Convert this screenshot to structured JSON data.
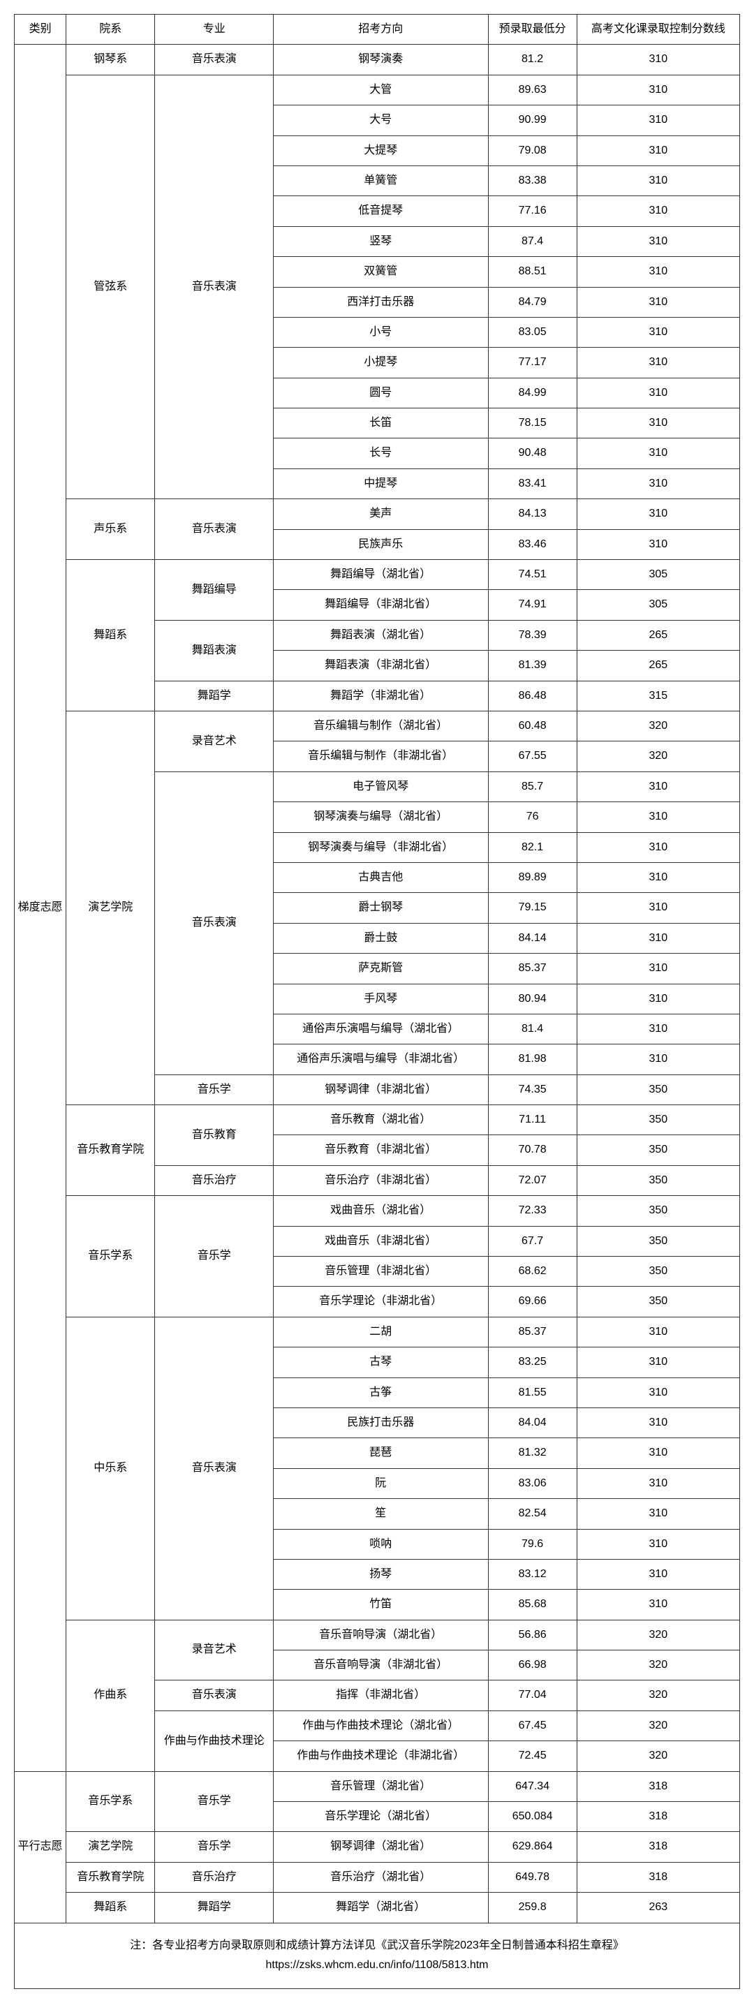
{
  "headers": {
    "category": "类别",
    "department": "院系",
    "major": "专业",
    "direction": "招考方向",
    "min_score": "预录取最低分",
    "culture_line": "高考文化课录取控制分数线"
  },
  "rows": [
    {
      "cat": "梯度志愿",
      "catSpan": 57,
      "dept": "钢琴系",
      "deptSpan": 1,
      "major": "音乐表演",
      "majorSpan": 1,
      "dir": "钢琴演奏",
      "min": "81.2",
      "line": "310"
    },
    {
      "dept": "管弦系",
      "deptSpan": 14,
      "major": "音乐表演",
      "majorSpan": 14,
      "dir": "大管",
      "min": "89.63",
      "line": "310"
    },
    {
      "dir": "大号",
      "min": "90.99",
      "line": "310"
    },
    {
      "dir": "大提琴",
      "min": "79.08",
      "line": "310"
    },
    {
      "dir": "单簧管",
      "min": "83.38",
      "line": "310"
    },
    {
      "dir": "低音提琴",
      "min": "77.16",
      "line": "310"
    },
    {
      "dir": "竖琴",
      "min": "87.4",
      "line": "310"
    },
    {
      "dir": "双簧管",
      "min": "88.51",
      "line": "310"
    },
    {
      "dir": "西洋打击乐器",
      "min": "84.79",
      "line": "310"
    },
    {
      "dir": "小号",
      "min": "83.05",
      "line": "310"
    },
    {
      "dir": "小提琴",
      "min": "77.17",
      "line": "310"
    },
    {
      "dir": "圆号",
      "min": "84.99",
      "line": "310"
    },
    {
      "dir": "长笛",
      "min": "78.15",
      "line": "310"
    },
    {
      "dir": "长号",
      "min": "90.48",
      "line": "310"
    },
    {
      "dir": "中提琴",
      "min": "83.41",
      "line": "310"
    },
    {
      "dept": "声乐系",
      "deptSpan": 2,
      "major": "音乐表演",
      "majorSpan": 2,
      "dir": "美声",
      "min": "84.13",
      "line": "310"
    },
    {
      "dir": "民族声乐",
      "min": "83.46",
      "line": "310"
    },
    {
      "dept": "舞蹈系",
      "deptSpan": 5,
      "major": "舞蹈编导",
      "majorSpan": 2,
      "dir": "舞蹈编导（湖北省）",
      "min": "74.51",
      "line": "305"
    },
    {
      "dir": "舞蹈编导（非湖北省）",
      "min": "74.91",
      "line": "305"
    },
    {
      "major": "舞蹈表演",
      "majorSpan": 2,
      "dir": "舞蹈表演（湖北省）",
      "min": "78.39",
      "line": "265"
    },
    {
      "dir": "舞蹈表演（非湖北省）",
      "min": "81.39",
      "line": "265"
    },
    {
      "major": "舞蹈学",
      "majorSpan": 1,
      "dir": "舞蹈学（非湖北省）",
      "min": "86.48",
      "line": "315"
    },
    {
      "dept": "演艺学院",
      "deptSpan": 13,
      "major": "录音艺术",
      "majorSpan": 2,
      "dir": "音乐编辑与制作（湖北省）",
      "min": "60.48",
      "line": "320"
    },
    {
      "dir": "音乐编辑与制作（非湖北省）",
      "min": "67.55",
      "line": "320"
    },
    {
      "major": "音乐表演",
      "majorSpan": 10,
      "dir": "电子管风琴",
      "min": "85.7",
      "line": "310"
    },
    {
      "dir": "钢琴演奏与编导（湖北省）",
      "min": "76",
      "line": "310"
    },
    {
      "dir": "钢琴演奏与编导（非湖北省）",
      "min": "82.1",
      "line": "310"
    },
    {
      "dir": "古典吉他",
      "min": "89.89",
      "line": "310"
    },
    {
      "dir": "爵士钢琴",
      "min": "79.15",
      "line": "310"
    },
    {
      "dir": "爵士鼓",
      "min": "84.14",
      "line": "310"
    },
    {
      "dir": "萨克斯管",
      "min": "85.37",
      "line": "310"
    },
    {
      "dir": "手风琴",
      "min": "80.94",
      "line": "310"
    },
    {
      "dir": "通俗声乐演唱与编导（湖北省）",
      "min": "81.4",
      "line": "310"
    },
    {
      "dir": "通俗声乐演唱与编导（非湖北省）",
      "min": "81.98",
      "line": "310"
    },
    {
      "major": "音乐学",
      "majorSpan": 1,
      "dir": "钢琴调律（非湖北省）",
      "min": "74.35",
      "line": "350"
    },
    {
      "dept": "音乐教育学院",
      "deptSpan": 3,
      "major": "音乐教育",
      "majorSpan": 2,
      "dir": "音乐教育（湖北省）",
      "min": "71.11",
      "line": "350"
    },
    {
      "dir": "音乐教育（非湖北省）",
      "min": "70.78",
      "line": "350"
    },
    {
      "major": "音乐治疗",
      "majorSpan": 1,
      "dir": "音乐治疗（非湖北省）",
      "min": "72.07",
      "line": "350"
    },
    {
      "dept": "音乐学系",
      "deptSpan": 4,
      "major": "音乐学",
      "majorSpan": 4,
      "dir": "戏曲音乐（湖北省）",
      "min": "72.33",
      "line": "350"
    },
    {
      "dir": "戏曲音乐（非湖北省）",
      "min": "67.7",
      "line": "350"
    },
    {
      "dir": "音乐管理（非湖北省）",
      "min": "68.62",
      "line": "350"
    },
    {
      "dir": "音乐学理论（非湖北省）",
      "min": "69.66",
      "line": "350"
    },
    {
      "dept": "中乐系",
      "deptSpan": 10,
      "major": "音乐表演",
      "majorSpan": 10,
      "dir": "二胡",
      "min": "85.37",
      "line": "310"
    },
    {
      "dir": "古琴",
      "min": "83.25",
      "line": "310"
    },
    {
      "dir": "古筝",
      "min": "81.55",
      "line": "310"
    },
    {
      "dir": "民族打击乐器",
      "min": "84.04",
      "line": "310"
    },
    {
      "dir": "琵琶",
      "min": "81.32",
      "line": "310"
    },
    {
      "dir": "阮",
      "min": "83.06",
      "line": "310"
    },
    {
      "dir": "笙",
      "min": "82.54",
      "line": "310"
    },
    {
      "dir": "唢呐",
      "min": "79.6",
      "line": "310"
    },
    {
      "dir": "扬琴",
      "min": "83.12",
      "line": "310"
    },
    {
      "dir": "竹笛",
      "min": "85.68",
      "line": "310"
    },
    {
      "dept": "作曲系",
      "deptSpan": 5,
      "major": "录音艺术",
      "majorSpan": 2,
      "dir": "音乐音响导演（湖北省）",
      "min": "56.86",
      "line": "320"
    },
    {
      "dir": "音乐音响导演（非湖北省）",
      "min": "66.98",
      "line": "320"
    },
    {
      "major": "音乐表演",
      "majorSpan": 1,
      "dir": "指挥（非湖北省）",
      "min": "77.04",
      "line": "320"
    },
    {
      "major": "作曲与作曲技术理论",
      "majorSpan": 2,
      "dir": "作曲与作曲技术理论（湖北省）",
      "min": "67.45",
      "line": "320"
    },
    {
      "dir": "作曲与作曲技术理论（非湖北省）",
      "min": "72.45",
      "line": "320"
    },
    {
      "cat": "平行志愿",
      "catSpan": 5,
      "dept": "音乐学系",
      "deptSpan": 2,
      "major": "音乐学",
      "majorSpan": 2,
      "dir": "音乐管理（湖北省）",
      "min": "647.34",
      "line": "318"
    },
    {
      "dir": "音乐学理论（湖北省）",
      "min": "650.084",
      "line": "318"
    },
    {
      "dept": "演艺学院",
      "deptSpan": 1,
      "major": "音乐学",
      "majorSpan": 1,
      "dir": "钢琴调律（湖北省）",
      "min": "629.864",
      "line": "318"
    },
    {
      "dept": "音乐教育学院",
      "deptSpan": 1,
      "major": "音乐治疗",
      "majorSpan": 1,
      "dir": "音乐治疗（湖北省）",
      "min": "649.78",
      "line": "318"
    },
    {
      "dept": "舞蹈系",
      "deptSpan": 1,
      "major": "舞蹈学",
      "majorSpan": 1,
      "dir": "舞蹈学（湖北省）",
      "min": "259.8",
      "line": "263"
    }
  ],
  "footer": {
    "line1": "注：各专业招考方向录取原则和成绩计算方法详见《武汉音乐学院2023年全日制普通本科招生章程》",
    "line2": "https://zsks.whcm.edu.cn/info/1108/5813.htm"
  }
}
